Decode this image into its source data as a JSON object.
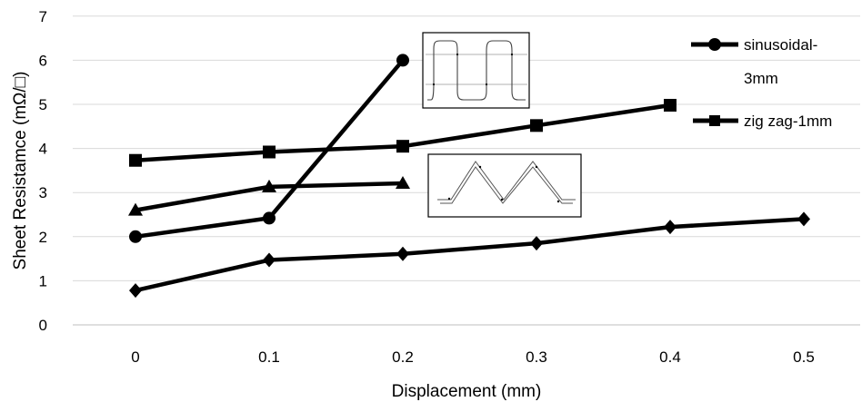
{
  "chart_data": {
    "type": "line",
    "xlabel": "Displacement (mm)",
    "ylabel": "Sheet Resistamce (mΩ/□)",
    "x_ticks": [
      "0",
      "0.1",
      "0.2",
      "0.3",
      "0.4",
      "0.5"
    ],
    "y_ticks": [
      "0",
      "1",
      "2",
      "3",
      "4",
      "5",
      "6",
      "7"
    ],
    "ylim": [
      0,
      7
    ],
    "grid": "horizontal",
    "legend_position": "right",
    "series": [
      {
        "name": "sinusoidal-3mm",
        "marker": "circle",
        "color": "#000000",
        "x": [
          0,
          0.1,
          0.2
        ],
        "values": [
          2.0,
          2.42,
          6.0
        ]
      },
      {
        "name": "zig zag-1mm",
        "marker": "square",
        "color": "#000000",
        "x": [
          0,
          0.1,
          0.2,
          0.3,
          0.4
        ],
        "values": [
          3.73,
          3.92,
          4.05,
          4.52,
          4.98
        ]
      },
      {
        "marker": "triangle",
        "color": "#000000",
        "x": [
          0,
          0.1,
          0.2
        ],
        "values": [
          2.6,
          3.13,
          3.21
        ]
      },
      {
        "marker": "diamond",
        "color": "#000000",
        "x": [
          0,
          0.1,
          0.2,
          0.3,
          0.4,
          0.5
        ],
        "values": [
          0.78,
          1.47,
          1.61,
          1.85,
          2.22,
          2.4
        ]
      }
    ],
    "legend": [
      {
        "label_lines": [
          "sinusoidal-",
          "3mm"
        ],
        "marker": "circle"
      },
      {
        "label_lines": [
          "zig zag-1mm"
        ],
        "marker": "square"
      }
    ],
    "insets": [
      "sinusoidal-waveform-inset",
      "zigzag-waveform-inset"
    ]
  }
}
